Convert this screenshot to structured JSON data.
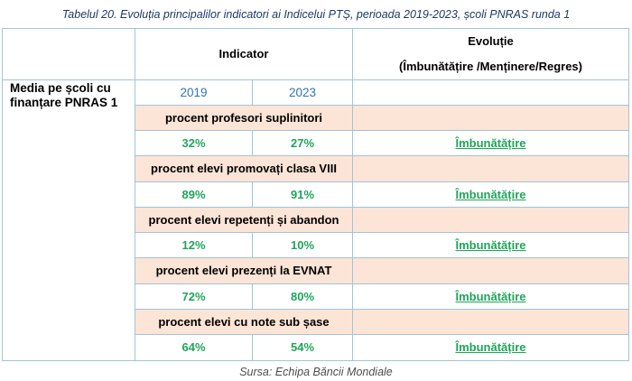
{
  "caption": "Tabelul 20. Evoluția principalilor indicatori ai Indicelui PTȘ, perioada 2019-2023, școli PNRAS runda 1",
  "header": {
    "indicator": "Indicator",
    "evolutie_title": "Evoluție",
    "evolutie_subtitle": "(Îmbunătățire /Menținere/Regres)"
  },
  "row_label": {
    "prefix": "Media pe școli cu finanțare ",
    "bold": "PNRAS 1"
  },
  "years": [
    "2019",
    "2023"
  ],
  "indicators": [
    {
      "name": "procent profesori suplinitori",
      "v2019": "32%",
      "v2023": "27%",
      "evolutie": "Îmbunătățire"
    },
    {
      "name": "procent elevi promovați clasa VIII",
      "v2019": "89%",
      "v2023": "91%",
      "evolutie": "Îmbunătățire"
    },
    {
      "name": "procent elevi repetenți și abandon",
      "v2019": "12%",
      "v2023": "10%",
      "evolutie": "Îmbunătățire"
    },
    {
      "name": "procent elevi prezenți la EVNAT",
      "v2019": "72%",
      "v2023": "80%",
      "evolutie": "Îmbunătățire"
    },
    {
      "name": "procent elevi cu note sub șase",
      "v2019": "64%",
      "v2023": "54%",
      "evolutie": "Îmbunătățire"
    }
  ],
  "source": "Sursa: Echipa Băncii Mondiale",
  "colors": {
    "grid": "#9fc5d8",
    "indicator_fill": "#fce4d6",
    "value_green": "#1ea65a",
    "year_blue": "#2e75b6"
  }
}
